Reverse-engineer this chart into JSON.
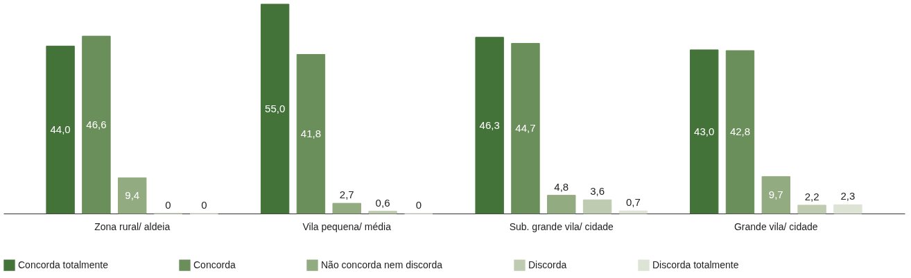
{
  "chart_data": {
    "type": "bar",
    "categories": [
      "Zona rural/ aldeia",
      "Vila pequena/ média",
      "Sub. grande vila/ cidade",
      "Grande vila/ cidade"
    ],
    "series": [
      {
        "name": "Concorda totalmente",
        "color": "#44733a",
        "values": [
          44.0,
          55.0,
          46.3,
          43.0
        ],
        "value_labels": [
          "44,0",
          "55,0",
          "46,3",
          "43,0"
        ]
      },
      {
        "name": "Concorda",
        "color": "#6b8f5a",
        "values": [
          46.6,
          41.8,
          44.7,
          42.8
        ],
        "value_labels": [
          "46,6",
          "41,8",
          "44,7",
          "42,8"
        ]
      },
      {
        "name": "Não concorda nem discorda",
        "color": "#93ab80",
        "values": [
          9.4,
          2.7,
          4.8,
          9.7
        ],
        "value_labels": [
          "9,4",
          "2,7",
          "4,8",
          "9,7"
        ]
      },
      {
        "name": "Discorda",
        "color": "#bfcbb0",
        "values": [
          0,
          0.6,
          3.6,
          2.2
        ],
        "value_labels": [
          "0",
          "0,6",
          "3,6",
          "2,2"
        ]
      },
      {
        "name": "Discorda totalmente",
        "color": "#dde3d5",
        "values": [
          0,
          0,
          0.7,
          2.3
        ],
        "value_labels": [
          "0",
          "0",
          "0,7",
          "2,3"
        ]
      }
    ],
    "legend": "bottom",
    "grid": false
  }
}
